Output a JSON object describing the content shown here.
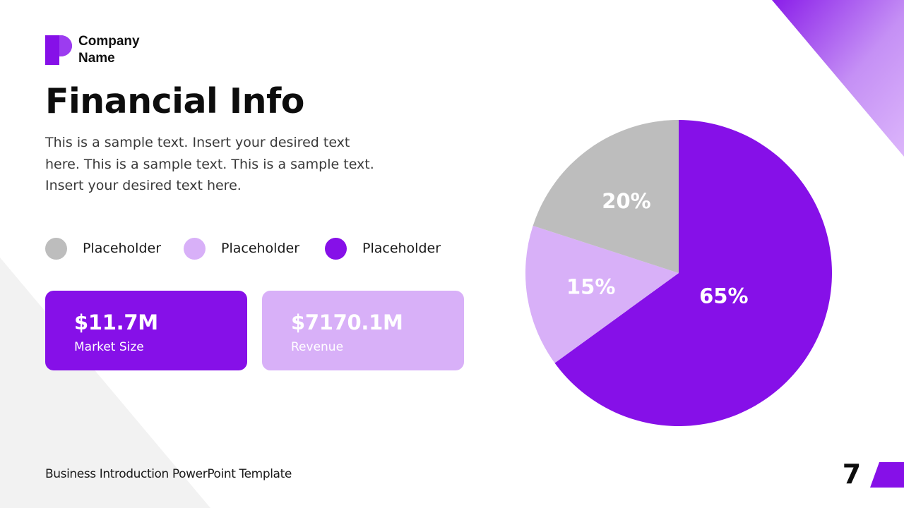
{
  "brand": {
    "company_name": "Company Name",
    "logo_icon": "letter-p-logo-icon"
  },
  "slide": {
    "title": "Financial Info",
    "body": "This is a sample text. Insert your desired text here. This is a sample text. This is a sample text. Insert your desired text here.",
    "footer": "Business Introduction PowerPoint Template",
    "page_number": "7"
  },
  "legend": [
    {
      "label": "Placeholder",
      "color": "#bdbdbd"
    },
    {
      "label": "Placeholder",
      "color": "#d8b0f8"
    },
    {
      "label": "Placeholder",
      "color": "#8610e8"
    }
  ],
  "cards": [
    {
      "value": "$11.7M",
      "label": "Market Size",
      "color": "#8610e8"
    },
    {
      "value": "$7170.1M",
      "label": "Revenue",
      "color": "#d8b0f8"
    }
  ],
  "colors": {
    "accent": "#8610e8",
    "accent_light": "#d8b0f8",
    "gray": "#bdbdbd",
    "background_shape": "#f2f2f2"
  },
  "chart_data": {
    "type": "pie",
    "title": "",
    "slices": [
      {
        "label": "65%",
        "value": 65,
        "color": "#8610e8"
      },
      {
        "label": "15%",
        "value": 15,
        "color": "#d8b0f8"
      },
      {
        "label": "20%",
        "value": 20,
        "color": "#bdbdbd"
      }
    ],
    "start": "12 o'clock",
    "direction": "clockwise"
  }
}
